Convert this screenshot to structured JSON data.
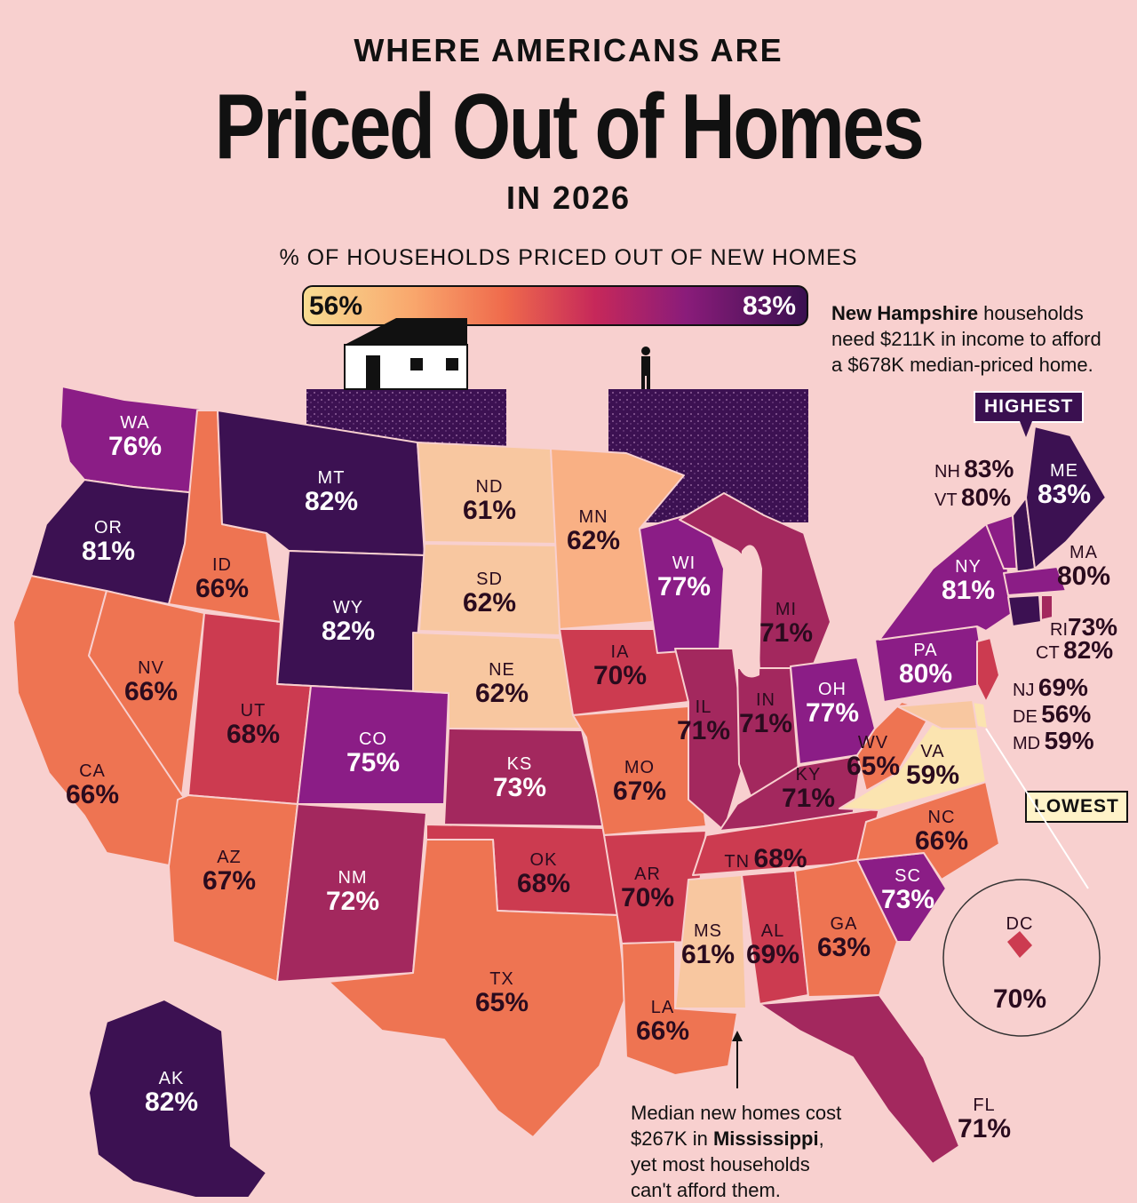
{
  "header": {
    "supertitle": "WHERE AMERICANS ARE",
    "title": "Priced Out of Homes",
    "year": "IN 2026"
  },
  "legend": {
    "label": "% OF HOUSEHOLDS PRICED OUT OF NEW HOMES",
    "min": "56%",
    "max": "83%",
    "color_min": "#f8dc92",
    "color_max": "#3a1050"
  },
  "callouts": {
    "nh_bold": "New Hampshire",
    "nh_line1_rest": " households",
    "nh_line2": "need $211K in income to afford",
    "nh_line3": "a $678K median-priced home.",
    "highest": "HIGHEST",
    "lowest": "LOWEST",
    "ms_line1": "Median new homes cost",
    "ms_line2_pre": "$267K in ",
    "ms_bold": "Mississippi",
    "ms_line2_post": ",",
    "ms_line3": "yet most households",
    "ms_line4": "can't afford them."
  },
  "states": {
    "WA": {
      "abbr": "WA",
      "pct": "76%"
    },
    "OR": {
      "abbr": "OR",
      "pct": "81%"
    },
    "CA": {
      "abbr": "CA",
      "pct": "66%"
    },
    "NV": {
      "abbr": "NV",
      "pct": "66%"
    },
    "ID": {
      "abbr": "ID",
      "pct": "66%"
    },
    "MT": {
      "abbr": "MT",
      "pct": "82%"
    },
    "WY": {
      "abbr": "WY",
      "pct": "82%"
    },
    "UT": {
      "abbr": "UT",
      "pct": "68%"
    },
    "AZ": {
      "abbr": "AZ",
      "pct": "67%"
    },
    "CO": {
      "abbr": "CO",
      "pct": "75%"
    },
    "NM": {
      "abbr": "NM",
      "pct": "72%"
    },
    "ND": {
      "abbr": "ND",
      "pct": "61%"
    },
    "SD": {
      "abbr": "SD",
      "pct": "62%"
    },
    "NE": {
      "abbr": "NE",
      "pct": "62%"
    },
    "KS": {
      "abbr": "KS",
      "pct": "73%"
    },
    "OK": {
      "abbr": "OK",
      "pct": "68%"
    },
    "TX": {
      "abbr": "TX",
      "pct": "65%"
    },
    "MN": {
      "abbr": "MN",
      "pct": "62%"
    },
    "IA": {
      "abbr": "IA",
      "pct": "70%"
    },
    "MO": {
      "abbr": "MO",
      "pct": "67%"
    },
    "AR": {
      "abbr": "AR",
      "pct": "70%"
    },
    "LA": {
      "abbr": "LA",
      "pct": "66%"
    },
    "WI": {
      "abbr": "WI",
      "pct": "77%"
    },
    "IL": {
      "abbr": "IL",
      "pct": "71%"
    },
    "MI": {
      "abbr": "MI",
      "pct": "71%"
    },
    "IN": {
      "abbr": "IN",
      "pct": "71%"
    },
    "OH": {
      "abbr": "OH",
      "pct": "77%"
    },
    "KY": {
      "abbr": "KY",
      "pct": "71%"
    },
    "TN": {
      "abbr": "TN",
      "pct": "68%"
    },
    "MS": {
      "abbr": "MS",
      "pct": "61%"
    },
    "AL": {
      "abbr": "AL",
      "pct": "69%"
    },
    "GA": {
      "abbr": "GA",
      "pct": "63%"
    },
    "FL": {
      "abbr": "FL",
      "pct": "71%"
    },
    "SC": {
      "abbr": "SC",
      "pct": "73%"
    },
    "NC": {
      "abbr": "NC",
      "pct": "66%"
    },
    "VA": {
      "abbr": "VA",
      "pct": "59%"
    },
    "WV": {
      "abbr": "WV",
      "pct": "65%"
    },
    "PA": {
      "abbr": "PA",
      "pct": "80%"
    },
    "NY": {
      "abbr": "NY",
      "pct": "81%"
    },
    "NH": {
      "abbr": "NH",
      "pct": "83%"
    },
    "VT": {
      "abbr": "VT",
      "pct": "80%"
    },
    "ME": {
      "abbr": "ME",
      "pct": "83%"
    },
    "MA": {
      "abbr": "MA",
      "pct": "80%"
    },
    "RI": {
      "abbr": "RI",
      "pct": "73%"
    },
    "CT": {
      "abbr": "CT",
      "pct": "82%"
    },
    "NJ": {
      "abbr": "NJ",
      "pct": "69%"
    },
    "DE": {
      "abbr": "DE",
      "pct": "56%"
    },
    "MD": {
      "abbr": "MD",
      "pct": "59%"
    },
    "DC": {
      "abbr": "DC",
      "pct": "70%"
    },
    "AK": {
      "abbr": "AK",
      "pct": "82%"
    }
  },
  "colors": {
    "bg": "#f8d0cf",
    "c56_61": "#f8c7a0",
    "c62": "#f9b084",
    "c63_67": "#ee7452",
    "c68_70": "#cc3b50",
    "c71_73": "#a3285e",
    "c75_77": "#8b1d86",
    "c80_83": "#3c1152"
  }
}
